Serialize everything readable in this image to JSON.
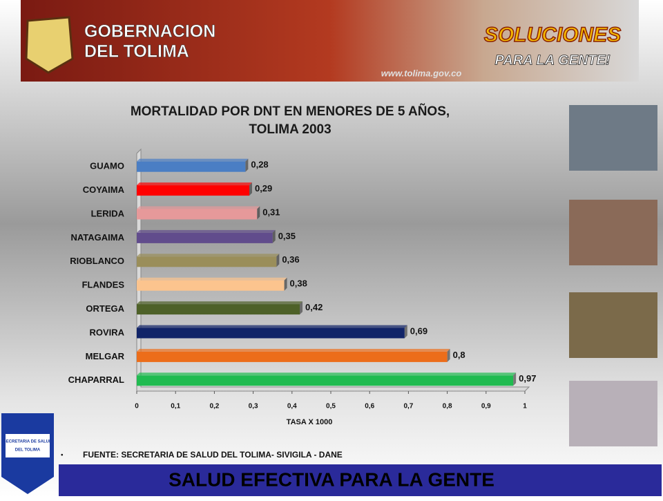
{
  "header": {
    "line1": "GOBERNACION",
    "line2": "DEL TOLIMA",
    "slogan1": "SOLUCIONES",
    "slogan2": "PARA LA GENTE!",
    "url": "www.tolima.gov.co"
  },
  "logo": {
    "line1": "SECRETARIA DE SALUD",
    "line2": "DEL TOLIMA"
  },
  "chart_data": {
    "type": "bar",
    "orientation": "horizontal",
    "title": [
      "MORTALIDAD POR DNT EN MENORES DE 5 AÑOS,",
      "TOLIMA 2003"
    ],
    "categories": [
      "GUAMO",
      "COYAIMA",
      "LERIDA",
      "NATAGAIMA",
      "RIOBLANCO",
      "FLANDES",
      "ORTEGA",
      "ROVIRA",
      "MELGAR",
      "CHAPARRAL"
    ],
    "values": [
      0.28,
      0.29,
      0.31,
      0.35,
      0.36,
      0.38,
      0.42,
      0.69,
      0.8,
      0.97
    ],
    "value_labels": [
      "0,28",
      "0,29",
      "0,31",
      "0,35",
      "0,36",
      "0,38",
      "0,42",
      "0,69",
      "0,8",
      "0,97"
    ],
    "colors": [
      "#4a7ec4",
      "#ff0000",
      "#e6999a",
      "#614c8c",
      "#9a8e5a",
      "#fcc48e",
      "#4e6128",
      "#112468",
      "#ec6d1a",
      "#20bb50"
    ],
    "xlim": [
      0,
      1
    ],
    "xticks": [
      0,
      {
        "value": 0.1,
        "label": "0,1"
      },
      {
        "value": 0.2,
        "label": "0,2"
      },
      {
        "value": 0.3,
        "label": "0,3"
      },
      {
        "value": 0.4,
        "label": "0,4"
      },
      {
        "value": 0.5,
        "label": "0,5"
      },
      {
        "value": 0.6,
        "label": "0,6"
      },
      {
        "value": 0.7,
        "label": "0,7"
      },
      {
        "value": 0.8,
        "label": "0,8"
      },
      {
        "value": 0.9,
        "label": "0,9"
      },
      1
    ],
    "xlabel": "TASA X 1000"
  },
  "footer": {
    "source": "FUENTE: SECRETARIA DE SALUD DEL TOLIMA- SIVIGILA - DANE",
    "banner": "SALUD EFECTIVA PARA LA GENTE"
  }
}
